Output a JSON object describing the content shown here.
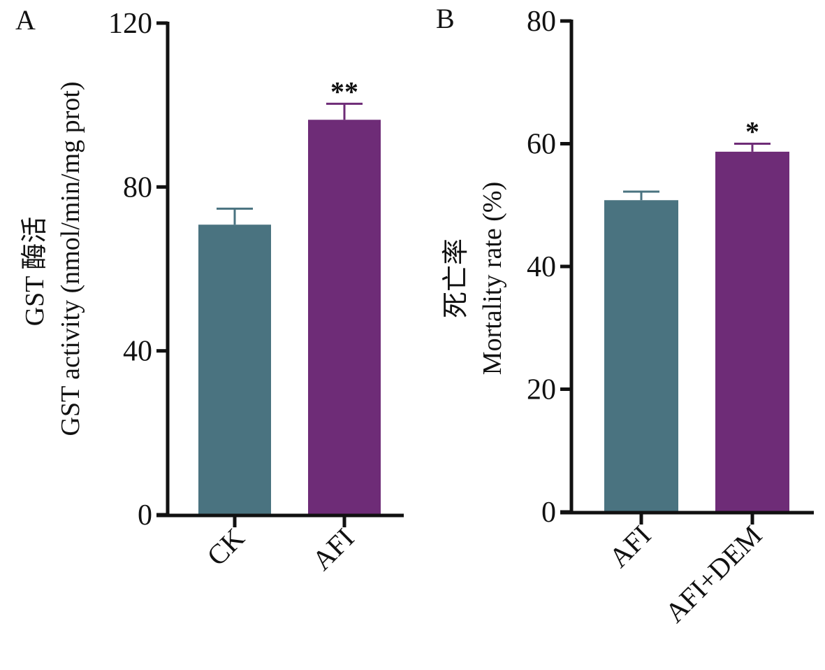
{
  "colors": {
    "axis": "#111111",
    "bar1": "#4a7380",
    "bar2": "#6e2c77"
  },
  "chart_data": [
    {
      "panel": "A",
      "type": "bar",
      "title": "",
      "ylabel_cn": "GST 酶活",
      "ylabel_en": "GST activity (nmol/min/mg prot)",
      "xlabel": "",
      "ylim": [
        0,
        120
      ],
      "yticks": [
        0,
        40,
        80,
        120
      ],
      "ytick_labels": [
        "0",
        "40",
        "80",
        "120"
      ],
      "categories": [
        "CK",
        "AFI"
      ],
      "values": [
        70.8,
        96.4
      ],
      "errors": [
        3.9,
        3.9
      ],
      "significance": [
        "",
        "**"
      ],
      "grid": false
    },
    {
      "panel": "B",
      "type": "bar",
      "title": "",
      "ylabel_cn": "死亡率",
      "ylabel_en": "Mortality rate (%)",
      "xlabel": "",
      "ylim": [
        0,
        80
      ],
      "yticks": [
        0,
        20,
        40,
        60,
        80
      ],
      "ytick_labels": [
        "0",
        "20",
        "40",
        "60",
        "80"
      ],
      "categories": [
        "AFI",
        "AFI+DEM"
      ],
      "values": [
        50.8,
        58.7
      ],
      "errors": [
        1.4,
        1.3
      ],
      "significance": [
        "",
        "*"
      ],
      "grid": false
    }
  ]
}
